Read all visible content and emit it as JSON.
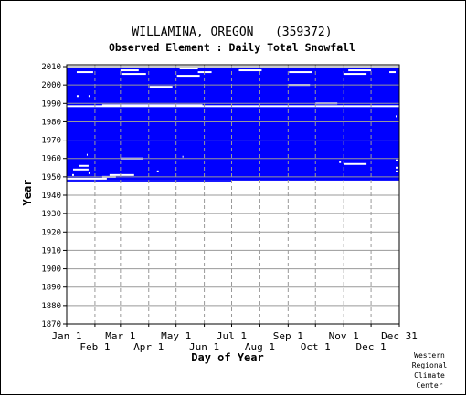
{
  "chart_data": {
    "type": "heatmap",
    "title": "WILLAMINA, OREGON   (359372)",
    "subtitle": "Observed Element : Daily Total Snowfall",
    "xlabel": "Day of Year",
    "ylabel": "Year",
    "x_domain": [
      1,
      366
    ],
    "ylim": [
      1870,
      2011
    ],
    "yticks": [
      1870,
      1880,
      1890,
      1900,
      1910,
      1920,
      1930,
      1940,
      1950,
      1960,
      1970,
      1980,
      1990,
      2000,
      2010
    ],
    "x_ticks_upper": [
      {
        "label": "Jan 1",
        "day": 1
      },
      {
        "label": "Mar 1",
        "day": 60
      },
      {
        "label": "May 1",
        "day": 121
      },
      {
        "label": "Jul 1",
        "day": 182
      },
      {
        "label": "Sep 1",
        "day": 244
      },
      {
        "label": "Nov 1",
        "day": 305
      },
      {
        "label": "Dec 31",
        "day": 366
      }
    ],
    "x_ticks_lower": [
      {
        "label": "Feb 1",
        "day": 32
      },
      {
        "label": "Apr 1",
        "day": 91
      },
      {
        "label": "Jun 1",
        "day": 152
      },
      {
        "label": "Aug 1",
        "day": 213
      },
      {
        "label": "Oct 1",
        "day": 274
      },
      {
        "label": "Dec 1",
        "day": 335
      }
    ],
    "data_color": "#0000ff",
    "missing_color": "#ffffff",
    "grid": true,
    "coverage": [
      {
        "from_day": 1,
        "to_day": 366,
        "from_year": 1948,
        "to_year": 2010.5
      },
      {
        "from_day": 1,
        "to_day": 182,
        "from_year": 1947.5,
        "to_year": 1948
      }
    ],
    "gaps": [
      {
        "year": 1988.5,
        "from_day": 1,
        "to_day": 366
      },
      {
        "year": 2010,
        "from_day": 1,
        "to_day": 366
      },
      {
        "year": 1989,
        "from_day": 40,
        "to_day": 150
      },
      {
        "year": 2008,
        "from_day": 60,
        "to_day": 80
      },
      {
        "year": 2007,
        "from_day": 12,
        "to_day": 30
      },
      {
        "year": 2007,
        "from_day": 145,
        "to_day": 160
      },
      {
        "year": 2009,
        "from_day": 125,
        "to_day": 145
      },
      {
        "year": 2008,
        "from_day": 190,
        "to_day": 215
      },
      {
        "year": 2008,
        "from_day": 310,
        "to_day": 335
      },
      {
        "year": 2007,
        "from_day": 245,
        "to_day": 270
      },
      {
        "year": 2006,
        "from_day": 61,
        "to_day": 88
      },
      {
        "year": 2005,
        "from_day": 122,
        "to_day": 147
      },
      {
        "year": 2006,
        "from_day": 305,
        "to_day": 330
      },
      {
        "year": 2007,
        "from_day": 355,
        "to_day": 362
      },
      {
        "year": 1999,
        "from_day": 92,
        "to_day": 117
      },
      {
        "year": 2000,
        "from_day": 244,
        "to_day": 268
      },
      {
        "year": 1994,
        "from_day": 12,
        "to_day": 14
      },
      {
        "year": 1994,
        "from_day": 25,
        "to_day": 27
      },
      {
        "year": 1990,
        "from_day": 274,
        "to_day": 298
      },
      {
        "year": 1983,
        "from_day": 362,
        "to_day": 364
      },
      {
        "year": 1961,
        "from_day": 128,
        "to_day": 129
      },
      {
        "year": 1960,
        "from_day": 60,
        "to_day": 85
      },
      {
        "year": 1957,
        "from_day": 305,
        "to_day": 330
      },
      {
        "year": 1958,
        "from_day": 300,
        "to_day": 302
      },
      {
        "year": 1959,
        "from_day": 362,
        "to_day": 365
      },
      {
        "year": 1955,
        "from_day": 362,
        "to_day": 365
      },
      {
        "year": 1953,
        "from_day": 362,
        "to_day": 365
      },
      {
        "year": 1956,
        "from_day": 15,
        "to_day": 25
      },
      {
        "year": 1954,
        "from_day": 8,
        "to_day": 25
      },
      {
        "year": 1952,
        "from_day": 25,
        "to_day": 27
      },
      {
        "year": 1951,
        "from_day": 48,
        "to_day": 75
      },
      {
        "year": 1953,
        "from_day": 100,
        "to_day": 102
      },
      {
        "year": 1951,
        "from_day": 7,
        "to_day": 9
      },
      {
        "year": 1949,
        "from_day": 1,
        "to_day": 45
      },
      {
        "year": 1950,
        "from_day": 40,
        "to_day": 55
      },
      {
        "year": 1962,
        "from_day": 23,
        "to_day": 24
      }
    ]
  },
  "credit": {
    "line1": "Western",
    "line2": "Regional",
    "line3": "Climate",
    "line4": "Center"
  }
}
